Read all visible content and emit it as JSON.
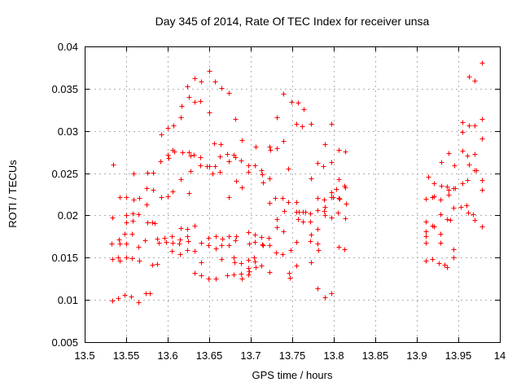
{
  "chart_data": {
    "type": "scatter",
    "title": "Day 345 of 2014, Rate Of TEC Index for receiver unsa",
    "xlabel": "GPS time / hours",
    "ylabel": "ROTI / TECUs",
    "xlim": [
      13.5,
      14
    ],
    "ylim": [
      0.005,
      0.04
    ],
    "xticks": [
      13.5,
      13.55,
      13.6,
      13.65,
      13.7,
      13.75,
      13.8,
      13.85,
      13.9,
      13.95,
      14
    ],
    "yticks": [
      0.005,
      0.01,
      0.015,
      0.02,
      0.025,
      0.03,
      0.035,
      0.04
    ],
    "grid": true,
    "legend": false,
    "marker": {
      "shape": "plus",
      "color": "#ff0000",
      "size": 7
    },
    "colors": {
      "grid": "#b0b0b0",
      "frame": "#000000",
      "background": "#ffffff",
      "text": "#000000"
    },
    "points": [
      [
        13.6235,
        0.03528
      ],
      [
        13.6255,
        0.03402
      ],
      [
        13.6167,
        0.03296
      ],
      [
        13.6157,
        0.03161
      ],
      [
        13.6069,
        0.03065
      ],
      [
        13.6,
        0.03036
      ],
      [
        13.5922,
        0.02959
      ],
      [
        13.6059,
        0.02775
      ],
      [
        13.6078,
        0.02756
      ],
      [
        13.6176,
        0.02747
      ],
      [
        13.6255,
        0.02747
      ],
      [
        13.6,
        0.02718
      ],
      [
        13.601,
        0.02679
      ],
      [
        13.5912,
        0.0264
      ],
      [
        13.5343,
        0.02602
      ],
      [
        13.5588,
        0.02496
      ],
      [
        13.5755,
        0.02506
      ],
      [
        13.5824,
        0.02506
      ],
      [
        13.6157,
        0.02428
      ],
      [
        13.5745,
        0.02322
      ],
      [
        13.5824,
        0.02303
      ],
      [
        13.6059,
        0.02284
      ],
      [
        13.6255,
        0.02264
      ],
      [
        13.5422,
        0.02216
      ],
      [
        13.55,
        0.02216
      ],
      [
        13.5588,
        0.02187
      ],
      [
        13.5657,
        0.02207
      ],
      [
        13.5745,
        0.02129
      ],
      [
        13.5922,
        0.02216
      ],
      [
        13.6,
        0.02226
      ],
      [
        13.5333,
        0.01975
      ],
      [
        13.55,
        0.02004
      ],
      [
        13.5578,
        0.02023
      ],
      [
        13.5647,
        0.02014
      ],
      [
        13.55,
        0.01917
      ],
      [
        13.5578,
        0.01937
      ],
      [
        13.5755,
        0.01917
      ],
      [
        13.5814,
        0.01917
      ],
      [
        13.5843,
        0.01908
      ],
      [
        13.548,
        0.01782
      ],
      [
        13.5569,
        0.01782
      ],
      [
        13.6157,
        0.0185
      ],
      [
        13.6235,
        0.0184
      ],
      [
        13.5324,
        0.01667
      ],
      [
        13.5412,
        0.01715
      ],
      [
        13.5422,
        0.01667
      ],
      [
        13.55,
        0.01667
      ],
      [
        13.5725,
        0.01705
      ],
      [
        13.5647,
        0.01628
      ],
      [
        13.5873,
        0.01724
      ],
      [
        13.5892,
        0.01676
      ],
      [
        13.5961,
        0.01734
      ],
      [
        13.598,
        0.01686
      ],
      [
        13.6049,
        0.01753
      ],
      [
        13.6059,
        0.01676
      ],
      [
        13.6137,
        0.01667
      ],
      [
        13.6147,
        0.01715
      ],
      [
        13.6235,
        0.01753
      ],
      [
        13.6245,
        0.01695
      ],
      [
        13.6049,
        0.0158
      ],
      [
        13.6147,
        0.01541
      ],
      [
        13.6235,
        0.0159
      ],
      [
        13.5333,
        0.01483
      ],
      [
        13.5402,
        0.01503
      ],
      [
        13.5422,
        0.01464
      ],
      [
        13.55,
        0.01503
      ],
      [
        13.5569,
        0.01493
      ],
      [
        13.5657,
        0.01464
      ],
      [
        13.5814,
        0.01416
      ],
      [
        13.5873,
        0.01426
      ],
      [
        13.548,
        0.01059
      ],
      [
        13.5559,
        0.0104
      ],
      [
        13.5735,
        0.01078
      ],
      [
        13.5784,
        0.01078
      ],
      [
        13.5647,
        0.00972
      ],
      [
        13.5333,
        0.00992
      ],
      [
        13.5402,
        0.01021
      ],
      [
        13.65,
        0.03711
      ],
      [
        13.6324,
        0.03624
      ],
      [
        13.6402,
        0.03585
      ],
      [
        13.6569,
        0.03585
      ],
      [
        13.6647,
        0.03508
      ],
      [
        13.6735,
        0.0345
      ],
      [
        13.7392,
        0.03441
      ],
      [
        13.6324,
        0.03344
      ],
      [
        13.6392,
        0.03354
      ],
      [
        13.749,
        0.03344
      ],
      [
        13.65,
        0.03219
      ],
      [
        13.6814,
        0.03142
      ],
      [
        13.7314,
        0.03161
      ],
      [
        13.6892,
        0.02891
      ],
      [
        13.7392,
        0.02881
      ],
      [
        13.6559,
        0.02853
      ],
      [
        13.6637,
        0.02843
      ],
      [
        13.7059,
        0.02814
      ],
      [
        13.7225,
        0.02814
      ],
      [
        13.7235,
        0.02775
      ],
      [
        13.7314,
        0.02795
      ],
      [
        13.6314,
        0.02718
      ],
      [
        13.6392,
        0.02689
      ],
      [
        13.6627,
        0.02698
      ],
      [
        13.6716,
        0.02727
      ],
      [
        13.6794,
        0.02718
      ],
      [
        13.6735,
        0.0264
      ],
      [
        13.6814,
        0.02689
      ],
      [
        13.6882,
        0.0265
      ],
      [
        13.6392,
        0.02592
      ],
      [
        13.6471,
        0.02583
      ],
      [
        13.65,
        0.02583
      ],
      [
        13.6569,
        0.02583
      ],
      [
        13.6971,
        0.02592
      ],
      [
        13.7049,
        0.02592
      ],
      [
        13.6539,
        0.02496
      ],
      [
        13.6627,
        0.02515
      ],
      [
        13.6971,
        0.02515
      ],
      [
        13.7127,
        0.02534
      ],
      [
        13.7137,
        0.02486
      ],
      [
        13.7225,
        0.02438
      ],
      [
        13.7147,
        0.0239
      ],
      [
        13.6824,
        0.02409
      ],
      [
        13.6892,
        0.02332
      ],
      [
        13.7451,
        0.02554
      ],
      [
        13.6275,
        0.02525
      ],
      [
        13.6275,
        0.02708
      ],
      [
        13.6735,
        0.02216
      ],
      [
        13.7225,
        0.02149
      ],
      [
        13.7294,
        0.02207
      ],
      [
        13.7382,
        0.02207
      ],
      [
        13.7451,
        0.02158
      ],
      [
        13.7402,
        0.02052
      ],
      [
        13.7314,
        0.01956
      ],
      [
        13.7314,
        0.01859
      ],
      [
        13.7392,
        0.01811
      ],
      [
        13.6324,
        0.01879
      ],
      [
        13.6402,
        0.01676
      ],
      [
        13.649,
        0.01734
      ],
      [
        13.649,
        0.01647
      ],
      [
        13.6578,
        0.01753
      ],
      [
        13.6578,
        0.01609
      ],
      [
        13.6647,
        0.01647
      ],
      [
        13.6657,
        0.01724
      ],
      [
        13.6735,
        0.01753
      ],
      [
        13.6735,
        0.01647
      ],
      [
        13.6814,
        0.01705
      ],
      [
        13.6824,
        0.01753
      ],
      [
        13.6971,
        0.01802
      ],
      [
        13.7049,
        0.01773
      ],
      [
        13.698,
        0.01667
      ],
      [
        13.7049,
        0.01686
      ],
      [
        13.7127,
        0.01744
      ],
      [
        13.7137,
        0.01657
      ],
      [
        13.7216,
        0.01734
      ],
      [
        13.7225,
        0.01647
      ],
      [
        13.7147,
        0.01647
      ],
      [
        13.6324,
        0.0158
      ],
      [
        13.6402,
        0.01445
      ],
      [
        13.6647,
        0.01483
      ],
      [
        13.6794,
        0.01503
      ],
      [
        13.6804,
        0.01445
      ],
      [
        13.6882,
        0.01435
      ],
      [
        13.6971,
        0.01474
      ],
      [
        13.7039,
        0.01503
      ],
      [
        13.7049,
        0.01455
      ],
      [
        13.7127,
        0.01406
      ],
      [
        13.6971,
        0.01377
      ],
      [
        13.7059,
        0.01387
      ],
      [
        13.6324,
        0.0132
      ],
      [
        13.6402,
        0.01291
      ],
      [
        13.649,
        0.01252
      ],
      [
        13.6578,
        0.01252
      ],
      [
        13.6716,
        0.01291
      ],
      [
        13.6794,
        0.013
      ],
      [
        13.6882,
        0.0131
      ],
      [
        13.6892,
        0.01252
      ],
      [
        13.6971,
        0.013
      ],
      [
        13.698,
        0.01339
      ],
      [
        13.7225,
        0.01329
      ],
      [
        13.7461,
        0.0132
      ],
      [
        13.7471,
        0.01262
      ],
      [
        13.7304,
        0.01561
      ],
      [
        13.7382,
        0.01541
      ],
      [
        13.748,
        0.0159
      ],
      [
        13.7569,
        0.03335
      ],
      [
        13.7637,
        0.03257
      ],
      [
        13.7549,
        0.03084
      ],
      [
        13.7618,
        0.03055
      ],
      [
        13.7725,
        0.03084
      ],
      [
        13.797,
        0.03084
      ],
      [
        13.7892,
        0.02843
      ],
      [
        13.8059,
        0.02775
      ],
      [
        13.8137,
        0.02756
      ],
      [
        13.7804,
        0.02621
      ],
      [
        13.7873,
        0.02583
      ],
      [
        13.797,
        0.02631
      ],
      [
        13.7725,
        0.02438
      ],
      [
        13.8059,
        0.02428
      ],
      [
        13.8127,
        0.02351
      ],
      [
        13.8137,
        0.02332
      ],
      [
        13.8029,
        0.02313
      ],
      [
        13.797,
        0.02274
      ],
      [
        13.7804,
        0.02207
      ],
      [
        13.7882,
        0.02187
      ],
      [
        13.797,
        0.02216
      ],
      [
        13.799,
        0.02216
      ],
      [
        13.8059,
        0.02207
      ],
      [
        13.8069,
        0.02197
      ],
      [
        13.8147,
        0.02139
      ],
      [
        13.7549,
        0.02158
      ],
      [
        13.7892,
        0.021
      ],
      [
        13.7549,
        0.02043
      ],
      [
        13.7578,
        0.02043
      ],
      [
        13.7627,
        0.02043
      ],
      [
        13.7657,
        0.02043
      ],
      [
        13.7716,
        0.02023
      ],
      [
        13.7804,
        0.02062
      ],
      [
        13.7882,
        0.02052
      ],
      [
        13.7892,
        0.02004
      ],
      [
        13.797,
        0.01975
      ],
      [
        13.8049,
        0.02033
      ],
      [
        13.8137,
        0.01966
      ],
      [
        13.7569,
        0.01956
      ],
      [
        13.7627,
        0.01927
      ],
      [
        13.7716,
        0.01927
      ],
      [
        13.7804,
        0.0184
      ],
      [
        13.7725,
        0.01773
      ],
      [
        13.7549,
        0.01686
      ],
      [
        13.7716,
        0.01695
      ],
      [
        13.7804,
        0.01667
      ],
      [
        13.7814,
        0.0159
      ],
      [
        13.8059,
        0.01628
      ],
      [
        13.8127,
        0.01599
      ],
      [
        13.7725,
        0.01445
      ],
      [
        13.7549,
        0.01406
      ],
      [
        13.7804,
        0.01136
      ],
      [
        13.797,
        0.01078
      ],
      [
        13.7892,
        0.0103
      ],
      [
        13.9784,
        0.03807
      ],
      [
        13.9627,
        0.03643
      ],
      [
        13.9696,
        0.03595
      ],
      [
        13.9784,
        0.03142
      ],
      [
        13.9549,
        0.03103
      ],
      [
        13.9627,
        0.03065
      ],
      [
        13.9696,
        0.03065
      ],
      [
        13.9549,
        0.02988
      ],
      [
        13.9784,
        0.0291
      ],
      [
        13.9382,
        0.02737
      ],
      [
        13.9549,
        0.02766
      ],
      [
        13.9608,
        0.02708
      ],
      [
        13.9696,
        0.02727
      ],
      [
        13.9294,
        0.02631
      ],
      [
        13.9451,
        0.02592
      ],
      [
        13.9627,
        0.02602
      ],
      [
        13.9696,
        0.02534
      ],
      [
        13.9716,
        0.02534
      ],
      [
        13.9137,
        0.02457
      ],
      [
        13.9206,
        0.0238
      ],
      [
        13.9294,
        0.02351
      ],
      [
        13.9363,
        0.02342
      ],
      [
        13.9382,
        0.02303
      ],
      [
        13.9441,
        0.02322
      ],
      [
        13.9461,
        0.02322
      ],
      [
        13.9549,
        0.0238
      ],
      [
        13.9608,
        0.02419
      ],
      [
        13.9784,
        0.02419
      ],
      [
        13.9784,
        0.02303
      ],
      [
        13.9382,
        0.02245
      ],
      [
        13.9108,
        0.02197
      ],
      [
        13.9186,
        0.02216
      ],
      [
        13.9206,
        0.02226
      ],
      [
        13.9284,
        0.02187
      ],
      [
        13.9441,
        0.02091
      ],
      [
        13.9529,
        0.021
      ],
      [
        13.9598,
        0.0212
      ],
      [
        13.9618,
        0.02033
      ],
      [
        13.9676,
        0.02014
      ],
      [
        13.9284,
        0.02014
      ],
      [
        13.9696,
        0.01946
      ],
      [
        13.9784,
        0.01869
      ],
      [
        13.9108,
        0.01927
      ],
      [
        13.9363,
        0.01956
      ],
      [
        13.9402,
        0.01946
      ],
      [
        13.9186,
        0.01879
      ],
      [
        13.9206,
        0.01869
      ],
      [
        13.9108,
        0.01811
      ],
      [
        13.9108,
        0.01753
      ],
      [
        13.9284,
        0.01782
      ],
      [
        13.9108,
        0.01676
      ],
      [
        13.9284,
        0.01676
      ],
      [
        13.9441,
        0.01599
      ],
      [
        13.9441,
        0.01503
      ],
      [
        13.9108,
        0.01464
      ],
      [
        13.9186,
        0.01483
      ],
      [
        13.9265,
        0.01435
      ],
      [
        13.9333,
        0.01416
      ],
      [
        13.9363,
        0.01387
      ]
    ]
  }
}
